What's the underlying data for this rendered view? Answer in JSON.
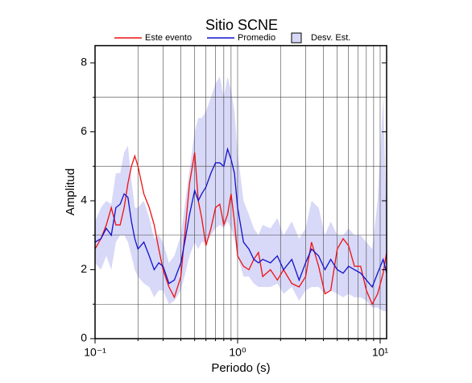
{
  "chart_data": {
    "type": "line",
    "title": "Sitio SCNE",
    "x_label": "Periodo (s)",
    "y_label": "Amplitud",
    "log_x": true,
    "xlim": [
      0.1,
      11.1
    ],
    "ylim": [
      0,
      8.5
    ],
    "xticks": [
      {
        "value": 0.1,
        "label": "10⁻¹"
      },
      {
        "value": 1,
        "label": "10⁰"
      },
      {
        "value": 10,
        "label": "10¹"
      }
    ],
    "minor_xticks": [
      0.2,
      0.3,
      0.4,
      0.5,
      0.6,
      0.7,
      0.8,
      0.9,
      2,
      3,
      4,
      5,
      6,
      7,
      8,
      9
    ],
    "yticks": [
      0,
      2,
      4,
      6,
      8
    ],
    "minor_yticks": [
      1,
      3,
      5,
      7
    ],
    "grid": true,
    "x": [
      0.1,
      0.11,
      0.12,
      0.13,
      0.14,
      0.15,
      0.16,
      0.17,
      0.18,
      0.19,
      0.2,
      0.22,
      0.24,
      0.26,
      0.28,
      0.3,
      0.33,
      0.36,
      0.4,
      0.43,
      0.46,
      0.5,
      0.53,
      0.56,
      0.6,
      0.65,
      0.7,
      0.75,
      0.8,
      0.85,
      0.9,
      0.95,
      1.0,
      1.1,
      1.2,
      1.3,
      1.4,
      1.5,
      1.7,
      1.9,
      2.1,
      2.4,
      2.7,
      3.0,
      3.3,
      3.7,
      4.1,
      4.5,
      5.0,
      5.5,
      6.0,
      6.6,
      7.3,
      8.0,
      8.8,
      9.6,
      10.5,
      11.1
    ],
    "band": {
      "name": "Desv. Est.",
      "color": "#d8d8f8",
      "lower": [
        2.2,
        2.0,
        2.4,
        2.0,
        2.8,
        3.0,
        3.0,
        2.8,
        2.4,
        2.0,
        1.8,
        1.6,
        1.5,
        1.2,
        1.4,
        1.4,
        1.0,
        1.1,
        1.4,
        1.9,
        2.4,
        2.8,
        2.6,
        2.8,
        2.8,
        3.0,
        3.2,
        3.3,
        3.2,
        3.4,
        3.2,
        2.9,
        2.4,
        1.8,
        1.8,
        1.6,
        1.5,
        1.5,
        1.5,
        1.6,
        1.3,
        1.5,
        1.1,
        1.4,
        1.5,
        1.5,
        1.3,
        1.4,
        1.3,
        1.2,
        1.3,
        1.2,
        1.2,
        1.1,
        0.9,
        0.9,
        0.8,
        0.8
      ],
      "upper": [
        3.4,
        3.8,
        4.0,
        3.9,
        4.8,
        4.8,
        5.4,
        5.6,
        4.6,
        3.8,
        3.8,
        4.0,
        3.5,
        2.9,
        3.0,
        2.8,
        2.2,
        2.4,
        3.0,
        4.0,
        4.9,
        6.0,
        6.4,
        6.4,
        6.6,
        7.0,
        7.4,
        7.6,
        7.0,
        7.6,
        7.2,
        6.6,
        5.4,
        4.0,
        3.6,
        3.2,
        3.0,
        3.3,
        3.2,
        3.5,
        3.0,
        3.4,
        2.9,
        3.2,
        4.0,
        3.8,
        3.0,
        3.4,
        3.0,
        3.0,
        3.2,
        3.0,
        3.0,
        2.8,
        2.6,
        4.0,
        7.0,
        3.5
      ]
    },
    "series": [
      {
        "name": "Este evento",
        "color": "#ee1111",
        "values": [
          2.6,
          2.9,
          3.3,
          3.8,
          3.3,
          3.3,
          3.8,
          4.5,
          5.0,
          5.3,
          5.0,
          4.2,
          3.8,
          3.3,
          2.6,
          2.0,
          1.5,
          1.2,
          1.8,
          3.2,
          4.5,
          5.4,
          4.0,
          3.5,
          2.7,
          3.2,
          3.8,
          3.9,
          3.3,
          3.6,
          4.2,
          3.4,
          2.4,
          2.1,
          2.0,
          2.3,
          2.5,
          1.8,
          2.0,
          1.7,
          2.0,
          1.6,
          1.5,
          1.8,
          2.8,
          2.1,
          1.3,
          1.4,
          2.6,
          2.9,
          2.7,
          2.1,
          2.1,
          1.4,
          1.0,
          1.3,
          1.9,
          2.5
        ]
      },
      {
        "name": "Promedio",
        "color": "#1111cc",
        "values": [
          2.8,
          2.9,
          3.2,
          3.0,
          3.8,
          3.9,
          4.2,
          4.1,
          3.4,
          2.9,
          2.6,
          2.8,
          2.4,
          2.0,
          2.2,
          2.1,
          1.6,
          1.7,
          2.2,
          2.9,
          3.6,
          4.3,
          4.0,
          4.2,
          4.4,
          4.8,
          5.1,
          5.1,
          5.0,
          5.5,
          5.2,
          4.8,
          3.8,
          2.8,
          2.6,
          2.3,
          2.2,
          2.3,
          2.2,
          2.4,
          2.0,
          2.3,
          1.7,
          2.2,
          2.6,
          2.4,
          2.0,
          2.3,
          2.0,
          1.9,
          2.1,
          2.0,
          1.9,
          1.7,
          1.5,
          1.9,
          2.3,
          1.9
        ]
      }
    ]
  }
}
